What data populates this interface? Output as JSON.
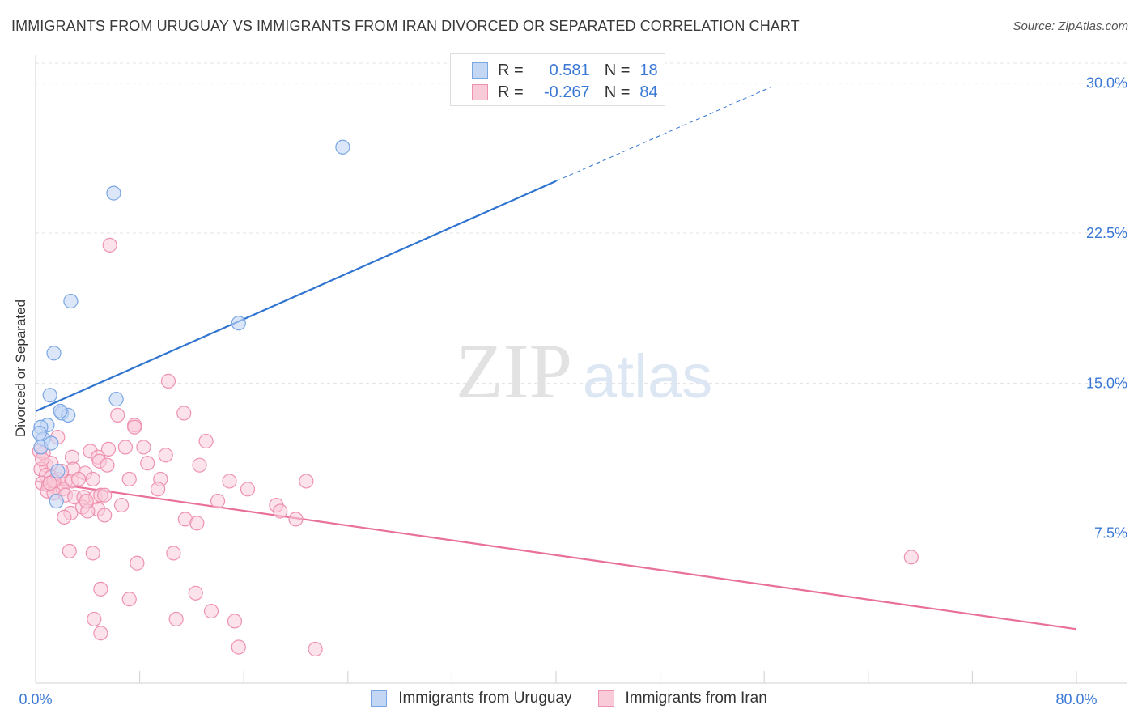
{
  "title": "IMMIGRANTS FROM URUGUAY VS IMMIGRANTS FROM IRAN DIVORCED OR SEPARATED CORRELATION CHART",
  "source": "Source: ZipAtlas.com",
  "watermark": {
    "zip": "ZIP",
    "atlas": "atlas"
  },
  "legend": {
    "uruguay": {
      "r_label": "R =",
      "r_value": "0.581",
      "n_label": "N =",
      "n_value": "18"
    },
    "iran": {
      "r_label": "R =",
      "r_value": "-0.267",
      "n_label": "N =",
      "n_value": "84"
    }
  },
  "colors": {
    "uruguay_fill": "#c3d7f5",
    "uruguay_stroke": "#7aa6e3",
    "uruguay_line": "#2f74d0",
    "iran_fill": "#f9cad8",
    "iran_stroke": "#ee92b0",
    "iran_line": "#e8709a",
    "tick_label": "#3a78d6",
    "grid": "#e3e3e3"
  },
  "chart_data": {
    "type": "scatter",
    "xlabel": "",
    "ylabel": "Divorced or Separated",
    "xlim": [
      0,
      80
    ],
    "ylim": [
      0,
      31
    ],
    "x_tick_labels": [
      {
        "x": 0,
        "label": "0.0%"
      },
      {
        "x": 80,
        "label": "80.0%"
      }
    ],
    "y_tick_labels": [
      {
        "y": 7.5,
        "label": "7.5%"
      },
      {
        "y": 15,
        "label": "15.0%"
      },
      {
        "y": 22.5,
        "label": "22.5%"
      },
      {
        "y": 30,
        "label": "30.0%"
      }
    ],
    "grid": true,
    "legend_position": "top-center",
    "series": [
      {
        "name": "Immigrants from Uruguay",
        "points": [
          [
            23.6,
            26.8
          ],
          [
            6.0,
            24.5
          ],
          [
            2.7,
            19.1
          ],
          [
            15.6,
            18.0
          ],
          [
            1.4,
            16.5
          ],
          [
            1.1,
            14.4
          ],
          [
            6.2,
            14.2
          ],
          [
            2.0,
            13.5
          ],
          [
            2.5,
            13.4
          ],
          [
            1.9,
            13.6
          ],
          [
            0.9,
            12.9
          ],
          [
            0.4,
            12.8
          ],
          [
            0.6,
            12.2
          ],
          [
            0.4,
            11.8
          ],
          [
            1.2,
            12.0
          ],
          [
            1.7,
            10.6
          ],
          [
            1.6,
            9.1
          ],
          [
            0.3,
            12.5
          ]
        ],
        "trend": {
          "x0": 0,
          "y0": 13.6,
          "x1": 40,
          "y1": 25.1,
          "dash_x1": 56.5,
          "dash_y1": 29.8
        }
      },
      {
        "name": "Immigrants from Iran",
        "points": [
          [
            5.7,
            21.9
          ],
          [
            10.2,
            15.1
          ],
          [
            11.4,
            13.5
          ],
          [
            6.3,
            13.4
          ],
          [
            7.6,
            12.9
          ],
          [
            7.6,
            12.8
          ],
          [
            1.7,
            12.3
          ],
          [
            13.1,
            12.1
          ],
          [
            5.6,
            11.7
          ],
          [
            4.2,
            11.6
          ],
          [
            6.9,
            11.8
          ],
          [
            8.3,
            11.8
          ],
          [
            0.6,
            11.5
          ],
          [
            2.8,
            11.3
          ],
          [
            10.0,
            11.4
          ],
          [
            4.8,
            11.3
          ],
          [
            4.9,
            11.1
          ],
          [
            0.8,
            10.9
          ],
          [
            1.2,
            11.0
          ],
          [
            5.5,
            10.9
          ],
          [
            8.6,
            11.0
          ],
          [
            12.6,
            10.9
          ],
          [
            2.9,
            10.7
          ],
          [
            3.8,
            10.5
          ],
          [
            0.4,
            10.7
          ],
          [
            0.8,
            10.4
          ],
          [
            1.2,
            10.3
          ],
          [
            1.7,
            10.2
          ],
          [
            2.3,
            10.1
          ],
          [
            2.8,
            10.1
          ],
          [
            3.3,
            10.2
          ],
          [
            4.4,
            10.2
          ],
          [
            7.2,
            10.2
          ],
          [
            9.6,
            10.2
          ],
          [
            14.9,
            10.1
          ],
          [
            20.8,
            10.1
          ],
          [
            0.5,
            10.0
          ],
          [
            1.0,
            9.9
          ],
          [
            1.5,
            9.8
          ],
          [
            2.1,
            9.7
          ],
          [
            9.4,
            9.7
          ],
          [
            16.3,
            9.7
          ],
          [
            0.9,
            9.6
          ],
          [
            1.4,
            9.5
          ],
          [
            2.3,
            9.4
          ],
          [
            3.0,
            9.3
          ],
          [
            3.7,
            9.3
          ],
          [
            4.6,
            9.3
          ],
          [
            5.0,
            9.4
          ],
          [
            5.3,
            9.4
          ],
          [
            14.0,
            9.1
          ],
          [
            18.5,
            8.9
          ],
          [
            3.6,
            8.8
          ],
          [
            4.8,
            8.7
          ],
          [
            4.0,
            8.6
          ],
          [
            18.8,
            8.6
          ],
          [
            2.7,
            8.5
          ],
          [
            5.3,
            8.4
          ],
          [
            2.2,
            8.3
          ],
          [
            11.5,
            8.2
          ],
          [
            20.0,
            8.2
          ],
          [
            2.6,
            6.6
          ],
          [
            4.4,
            6.5
          ],
          [
            10.6,
            6.5
          ],
          [
            7.8,
            6.0
          ],
          [
            67.3,
            6.3
          ],
          [
            5.0,
            4.7
          ],
          [
            12.3,
            4.5
          ],
          [
            7.2,
            4.2
          ],
          [
            13.5,
            3.6
          ],
          [
            4.5,
            3.2
          ],
          [
            10.8,
            3.2
          ],
          [
            15.3,
            3.1
          ],
          [
            5.0,
            2.5
          ],
          [
            15.6,
            1.8
          ],
          [
            21.5,
            1.7
          ],
          [
            0.3,
            11.6
          ],
          [
            0.5,
            11.2
          ],
          [
            2.0,
            10.6
          ],
          [
            1.4,
            10.1
          ],
          [
            1.1,
            10.0
          ],
          [
            6.6,
            8.9
          ],
          [
            3.9,
            9.1
          ],
          [
            12.4,
            8.0
          ]
        ],
        "trend": {
          "x0": 0,
          "y0": 10.1,
          "x1": 80,
          "y1": 2.7
        }
      }
    ]
  },
  "bottom_legend": {
    "uruguay": "Immigrants from Uruguay",
    "iran": "Immigrants from Iran"
  }
}
